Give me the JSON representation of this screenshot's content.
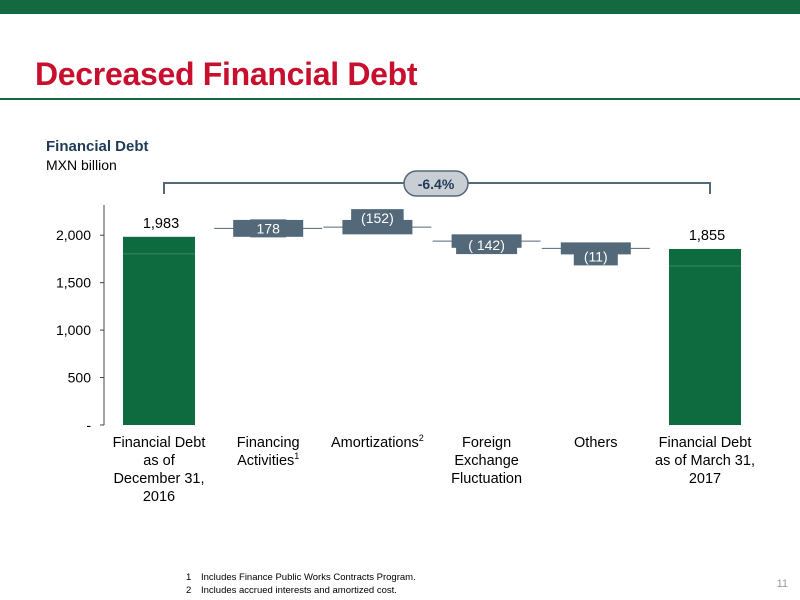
{
  "slide": {
    "title": "Decreased Financial Debt",
    "page_number": "11",
    "accent_color": "#c8102e",
    "brand_color": "#136a41"
  },
  "chart_data": {
    "type": "bar",
    "subtype": "waterfall",
    "title": "Financial Debt",
    "subtitle": "MXN billion",
    "ylim": [
      0,
      2300
    ],
    "yticks": [
      {
        "value": 0,
        "label": "-"
      },
      {
        "value": 500,
        "label": "500"
      },
      {
        "value": 1000,
        "label": "1,000"
      },
      {
        "value": 1500,
        "label": "1,500"
      },
      {
        "value": 2000,
        "label": "2,000"
      }
    ],
    "grid": false,
    "categories": [
      {
        "lines": [
          "Financial Debt",
          "as of",
          "December 31,",
          "2016"
        ],
        "sup": ""
      },
      {
        "lines": [
          "Financing",
          "Activities"
        ],
        "sup": "1"
      },
      {
        "lines": [
          "Amortizations"
        ],
        "sup": "2"
      },
      {
        "lines": [
          "Foreign",
          "Exchange",
          "Fluctuation"
        ],
        "sup": ""
      },
      {
        "lines": [
          "Others"
        ],
        "sup": ""
      },
      {
        "lines": [
          "Financial Debt",
          "as of March 31,",
          "2017"
        ],
        "sup": ""
      }
    ],
    "bars": [
      {
        "kind": "total",
        "value": 1983,
        "label": "1,983"
      },
      {
        "kind": "delta",
        "start": 1983,
        "end": 2161,
        "label": "178"
      },
      {
        "kind": "delta",
        "start": 2161,
        "end": 2009,
        "label": "(152)"
      },
      {
        "kind": "delta",
        "start": 2009,
        "end": 1867,
        "label": "( 142)"
      },
      {
        "kind": "delta",
        "start": 1867,
        "end": 1855,
        "label": "(11)"
      },
      {
        "kind": "total",
        "value": 1855,
        "label": "1,855"
      }
    ],
    "change_label": "-6.4%",
    "total_color": "#0d6b3f",
    "delta_color": "#536878"
  },
  "footnotes": [
    {
      "num": "1",
      "text": "Includes Finance Public Works Contracts Program."
    },
    {
      "num": "2",
      "text": "Includes accrued interests and amortized cost."
    }
  ]
}
